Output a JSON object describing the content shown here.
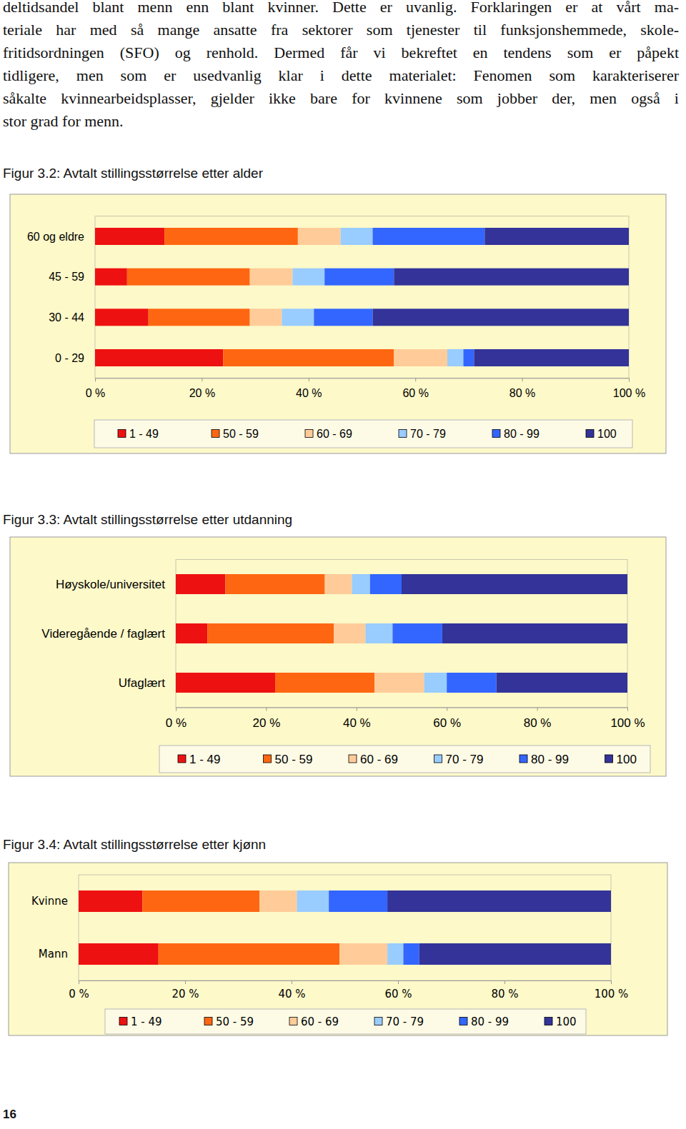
{
  "paragraph": [
    "deltidsandel blant menn enn blant kvinner. Dette er uvanlig. Forklaringen er at vårt ma-",
    "teriale har med så mange ansatte fra sektorer som tjenester til funksjonshemmede, skole-",
    "fritidsordningen (SFO) og renhold. Dermed får vi bekreftet en tendens som er påpekt",
    "tidligere, men som er usedvanlig klar i dette materialet: Fenomen som karakteriserer",
    "såkalte kvinnearbeidsplasser, gjelder ikke bare for kvinnene som jobber der, men også i",
    "stor grad for menn."
  ],
  "chart_data": [
    {
      "type": "bar",
      "title": "Figur 3.2: Avtalt stillingsstørrelse etter alder",
      "orientation": "horizontal",
      "stacked": true,
      "legend": "bottom",
      "categories": [
        "60 og eldre",
        "45 - 59",
        "30 - 44",
        "0 - 29"
      ],
      "series": [
        {
          "name": "1 - 49",
          "color": "#ee1111",
          "values": [
            13,
            6,
            10,
            24
          ]
        },
        {
          "name": "50 - 59",
          "color": "#ff6611",
          "values": [
            25,
            23,
            19,
            32
          ]
        },
        {
          "name": "60 - 69",
          "color": "#ffcc99",
          "values": [
            8,
            8,
            6,
            10
          ]
        },
        {
          "name": "70 - 79",
          "color": "#99ccff",
          "values": [
            6,
            6,
            6,
            3
          ]
        },
        {
          "name": "80 - 99",
          "color": "#3366ff",
          "values": [
            21,
            13,
            11,
            2
          ]
        },
        {
          "name": "100",
          "color": "#333399",
          "values": [
            27,
            44,
            48,
            29
          ]
        }
      ],
      "xlim": [
        0,
        100
      ],
      "xticks": [
        {
          "value": 0,
          "label": "0 %"
        },
        {
          "value": 20,
          "label": "20 %"
        },
        {
          "value": 40,
          "label": "40 %"
        },
        {
          "value": 60,
          "label": "60 %"
        },
        {
          "value": 80,
          "label": "80 %"
        },
        {
          "value": 100,
          "label": "100 %"
        }
      ]
    },
    {
      "type": "bar",
      "title": "Figur 3.3: Avtalt stillingsstørrelse etter utdanning",
      "orientation": "horizontal",
      "stacked": true,
      "legend": "bottom",
      "categories": [
        "Høyskole/universitet",
        "Videregående / faglært",
        "Ufaglært"
      ],
      "series": [
        {
          "name": "1 - 49",
          "color": "#ee1111",
          "values": [
            11,
            7,
            22
          ]
        },
        {
          "name": "50 - 59",
          "color": "#ff6611",
          "values": [
            22,
            28,
            22
          ]
        },
        {
          "name": "60 - 69",
          "color": "#ffcc99",
          "values": [
            6,
            7,
            11
          ]
        },
        {
          "name": "70 - 79",
          "color": "#99ccff",
          "values": [
            4,
            6,
            5
          ]
        },
        {
          "name": "80 - 99",
          "color": "#3366ff",
          "values": [
            7,
            11,
            11
          ]
        },
        {
          "name": "100",
          "color": "#333399",
          "values": [
            50,
            41,
            29
          ]
        }
      ],
      "xlim": [
        0,
        100
      ],
      "xticks": [
        {
          "value": 0,
          "label": "0 %"
        },
        {
          "value": 20,
          "label": "20 %"
        },
        {
          "value": 40,
          "label": "40 %"
        },
        {
          "value": 60,
          "label": "60 %"
        },
        {
          "value": 80,
          "label": "80 %"
        },
        {
          "value": 100,
          "label": "100 %"
        }
      ]
    },
    {
      "type": "bar",
      "title": "Figur 3.4: Avtalt stillingsstørrelse etter kjønn",
      "orientation": "horizontal",
      "stacked": true,
      "legend": "bottom",
      "categories": [
        "Kvinne",
        "Mann"
      ],
      "series": [
        {
          "name": "1 - 49",
          "color": "#ee1111",
          "values": [
            12,
            15
          ]
        },
        {
          "name": "50 - 59",
          "color": "#ff6611",
          "values": [
            22,
            34
          ]
        },
        {
          "name": "60 - 69",
          "color": "#ffcc99",
          "values": [
            7,
            9
          ]
        },
        {
          "name": "70 - 79",
          "color": "#99ccff",
          "values": [
            6,
            3
          ]
        },
        {
          "name": "80 - 99",
          "color": "#3366ff",
          "values": [
            11,
            3
          ]
        },
        {
          "name": "100",
          "color": "#333399",
          "values": [
            42,
            36
          ]
        }
      ],
      "xlim": [
        0,
        100
      ],
      "xticks": [
        {
          "value": 0,
          "label": "0 %"
        },
        {
          "value": 20,
          "label": "20 %"
        },
        {
          "value": 40,
          "label": "40 %"
        },
        {
          "value": 60,
          "label": "60 %"
        },
        {
          "value": 80,
          "label": "80 %"
        },
        {
          "value": 100,
          "label": "100 %"
        }
      ]
    }
  ],
  "page_number": "16"
}
